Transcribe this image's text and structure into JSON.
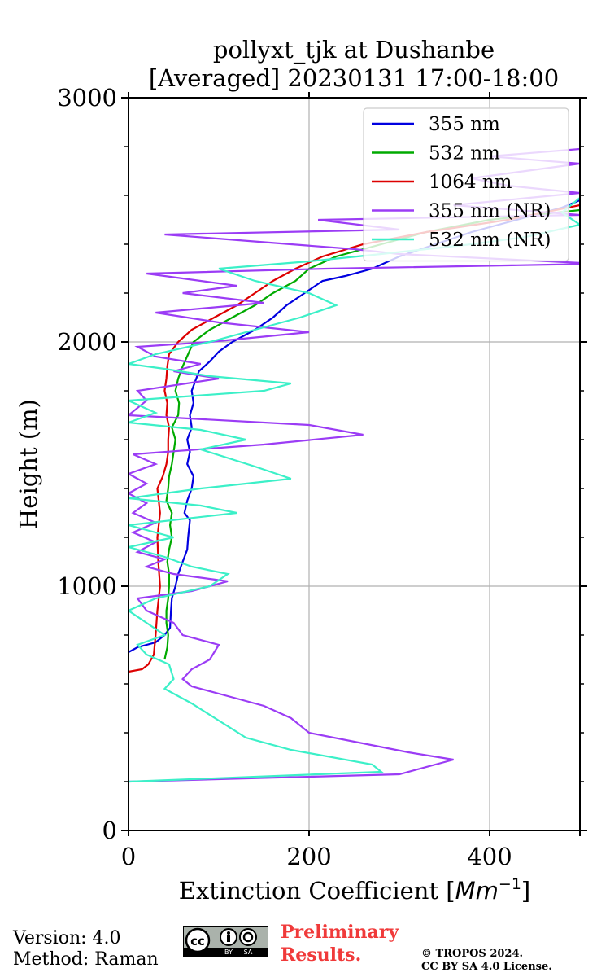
{
  "chart_data": {
    "type": "line",
    "title_line1": "pollyxt_tjk at Dushanbe",
    "title_line2": "[Averaged] 20230131 17:00-18:00",
    "xlabel": "Extinction Coefficient [",
    "xlabel_unit": "Mm",
    "xlabel_exp": "−1",
    "xlabel_close": "]",
    "ylabel": "Height (m)",
    "xlim": [
      0,
      500
    ],
    "ylim": [
      0,
      3000
    ],
    "x_ticks": [
      0,
      200,
      400
    ],
    "x_tick_labels": [
      "0",
      "200",
      "400"
    ],
    "y_ticks": [
      0,
      1000,
      2000,
      3000
    ],
    "y_tick_labels": [
      "0",
      "1000",
      "2000",
      "3000"
    ],
    "grid": true,
    "legend_position": "top-right",
    "series": [
      {
        "name": "355 nm",
        "color": "#0000e0",
        "points": [
          [
            0,
            730
          ],
          [
            10,
            750
          ],
          [
            30,
            770
          ],
          [
            40,
            800
          ],
          [
            46,
            830
          ],
          [
            47,
            900
          ],
          [
            48,
            950
          ],
          [
            52,
            1000
          ],
          [
            55,
            1050
          ],
          [
            60,
            1100
          ],
          [
            65,
            1150
          ],
          [
            66,
            1200
          ],
          [
            68,
            1270
          ],
          [
            62,
            1300
          ],
          [
            65,
            1350
          ],
          [
            70,
            1400
          ],
          [
            72,
            1450
          ],
          [
            65,
            1500
          ],
          [
            68,
            1550
          ],
          [
            65,
            1600
          ],
          [
            70,
            1650
          ],
          [
            68,
            1700
          ],
          [
            72,
            1750
          ],
          [
            70,
            1800
          ],
          [
            75,
            1850
          ],
          [
            78,
            1880
          ],
          [
            90,
            1920
          ],
          [
            100,
            1960
          ],
          [
            115,
            2000
          ],
          [
            140,
            2050
          ],
          [
            160,
            2100
          ],
          [
            175,
            2150
          ],
          [
            195,
            2200
          ],
          [
            215,
            2250
          ],
          [
            240,
            2270
          ],
          [
            270,
            2300
          ],
          [
            300,
            2350
          ],
          [
            340,
            2400
          ],
          [
            380,
            2450
          ],
          [
            430,
            2500
          ],
          [
            480,
            2550
          ],
          [
            500,
            2580
          ]
        ]
      },
      {
        "name": "532 nm",
        "color": "#00aa00",
        "points": [
          [
            40,
            700
          ],
          [
            43,
            750
          ],
          [
            44,
            800
          ],
          [
            42,
            850
          ],
          [
            42,
            900
          ],
          [
            44,
            950
          ],
          [
            45,
            1000
          ],
          [
            45,
            1050
          ],
          [
            43,
            1100
          ],
          [
            45,
            1150
          ],
          [
            48,
            1200
          ],
          [
            46,
            1250
          ],
          [
            48,
            1300
          ],
          [
            42,
            1350
          ],
          [
            44,
            1400
          ],
          [
            45,
            1450
          ],
          [
            48,
            1500
          ],
          [
            50,
            1550
          ],
          [
            52,
            1600
          ],
          [
            48,
            1650
          ],
          [
            55,
            1700
          ],
          [
            56,
            1750
          ],
          [
            52,
            1800
          ],
          [
            55,
            1850
          ],
          [
            60,
            1900
          ],
          [
            66,
            1950
          ],
          [
            72,
            2000
          ],
          [
            90,
            2050
          ],
          [
            115,
            2100
          ],
          [
            140,
            2150
          ],
          [
            160,
            2200
          ],
          [
            185,
            2250
          ],
          [
            200,
            2300
          ],
          [
            230,
            2350
          ],
          [
            280,
            2400
          ],
          [
            330,
            2450
          ],
          [
            400,
            2500
          ],
          [
            500,
            2540
          ]
        ]
      },
      {
        "name": "1064 nm",
        "color": "#dd0000",
        "points": [
          [
            0,
            650
          ],
          [
            15,
            660
          ],
          [
            22,
            680
          ],
          [
            28,
            720
          ],
          [
            30,
            800
          ],
          [
            32,
            900
          ],
          [
            35,
            1000
          ],
          [
            33,
            1100
          ],
          [
            32,
            1200
          ],
          [
            35,
            1300
          ],
          [
            32,
            1400
          ],
          [
            38,
            1450
          ],
          [
            42,
            1500
          ],
          [
            44,
            1550
          ],
          [
            44,
            1600
          ],
          [
            45,
            1650
          ],
          [
            42,
            1700
          ],
          [
            43,
            1750
          ],
          [
            40,
            1800
          ],
          [
            42,
            1850
          ],
          [
            43,
            1900
          ],
          [
            45,
            1950
          ],
          [
            55,
            2000
          ],
          [
            70,
            2050
          ],
          [
            95,
            2100
          ],
          [
            120,
            2150
          ],
          [
            140,
            2200
          ],
          [
            160,
            2250
          ],
          [
            185,
            2300
          ],
          [
            215,
            2350
          ],
          [
            260,
            2400
          ],
          [
            330,
            2450
          ],
          [
            420,
            2500
          ],
          [
            500,
            2560
          ]
        ]
      },
      {
        "name": "355 nm (NR)",
        "color": "#9b3cf5",
        "points": [
          [
            0,
            200
          ],
          [
            300,
            230
          ],
          [
            360,
            290
          ],
          [
            310,
            320
          ],
          [
            200,
            400
          ],
          [
            180,
            460
          ],
          [
            150,
            510
          ],
          [
            100,
            560
          ],
          [
            70,
            590
          ],
          [
            60,
            620
          ],
          [
            70,
            660
          ],
          [
            90,
            700
          ],
          [
            100,
            760
          ],
          [
            60,
            800
          ],
          [
            50,
            850
          ],
          [
            20,
            900
          ],
          [
            10,
            950
          ],
          [
            70,
            980
          ],
          [
            110,
            1020
          ],
          [
            50,
            1050
          ],
          [
            20,
            1080
          ],
          [
            40,
            1110
          ],
          [
            10,
            1140
          ],
          [
            30,
            1180
          ],
          [
            5,
            1220
          ],
          [
            30,
            1260
          ],
          [
            5,
            1300
          ],
          [
            20,
            1340
          ],
          [
            0,
            1380
          ],
          [
            20,
            1420
          ],
          [
            0,
            1460
          ],
          [
            30,
            1500
          ],
          [
            5,
            1540
          ],
          [
            150,
            1580
          ],
          [
            260,
            1620
          ],
          [
            200,
            1660
          ],
          [
            0,
            1700
          ],
          [
            20,
            1760
          ],
          [
            10,
            1800
          ],
          [
            100,
            1850
          ],
          [
            50,
            1880
          ],
          [
            80,
            1910
          ],
          [
            30,
            1940
          ],
          [
            10,
            1980
          ],
          [
            90,
            2000
          ],
          [
            200,
            2040
          ],
          [
            100,
            2080
          ],
          [
            30,
            2120
          ],
          [
            150,
            2160
          ],
          [
            60,
            2200
          ],
          [
            120,
            2230
          ],
          [
            20,
            2280
          ],
          [
            220,
            2300
          ],
          [
            520,
            2320
          ],
          [
            300,
            2360
          ],
          [
            250,
            2380
          ],
          [
            40,
            2440
          ],
          [
            300,
            2460
          ],
          [
            210,
            2500
          ],
          [
            500,
            2520
          ],
          [
            360,
            2560
          ],
          [
            500,
            2610
          ],
          [
            420,
            2640
          ],
          [
            380,
            2670
          ],
          [
            440,
            2700
          ],
          [
            500,
            2730
          ],
          [
            400,
            2760
          ],
          [
            500,
            2790
          ]
        ]
      },
      {
        "name": "532 nm (NR)",
        "color": "#3cf0c8",
        "points": [
          [
            0,
            200
          ],
          [
            280,
            240
          ],
          [
            270,
            270
          ],
          [
            180,
            330
          ],
          [
            130,
            380
          ],
          [
            100,
            450
          ],
          [
            70,
            520
          ],
          [
            40,
            580
          ],
          [
            50,
            620
          ],
          [
            45,
            680
          ],
          [
            20,
            720
          ],
          [
            10,
            760
          ],
          [
            40,
            800
          ],
          [
            20,
            850
          ],
          [
            0,
            900
          ],
          [
            30,
            950
          ],
          [
            90,
            1000
          ],
          [
            110,
            1050
          ],
          [
            70,
            1080
          ],
          [
            40,
            1120
          ],
          [
            0,
            1160
          ],
          [
            50,
            1200
          ],
          [
            0,
            1250
          ],
          [
            120,
            1300
          ],
          [
            80,
            1330
          ],
          [
            0,
            1360
          ],
          [
            80,
            1400
          ],
          [
            180,
            1440
          ],
          [
            140,
            1490
          ],
          [
            80,
            1560
          ],
          [
            130,
            1600
          ],
          [
            80,
            1640
          ],
          [
            0,
            1670
          ],
          [
            30,
            1710
          ],
          [
            0,
            1760
          ],
          [
            150,
            1800
          ],
          [
            180,
            1830
          ],
          [
            90,
            1860
          ],
          [
            40,
            1890
          ],
          [
            0,
            1910
          ],
          [
            30,
            1950
          ],
          [
            90,
            2000
          ],
          [
            140,
            2050
          ],
          [
            190,
            2100
          ],
          [
            230,
            2150
          ],
          [
            200,
            2200
          ],
          [
            140,
            2250
          ],
          [
            100,
            2300
          ],
          [
            200,
            2330
          ],
          [
            280,
            2360
          ],
          [
            380,
            2400
          ],
          [
            440,
            2430
          ],
          [
            500,
            2480
          ],
          [
            480,
            2530
          ],
          [
            500,
            2590
          ]
        ]
      }
    ]
  },
  "footer": {
    "version": "Version: 4.0",
    "method": "Method: Raman",
    "preliminary_line1": "Preliminary",
    "preliminary_line2": "Results.",
    "copyright_line1": "© TROPOS 2024.",
    "copyright_line2": "CC BY SA 4.0 License.",
    "cc_badge": {
      "cc": "cc",
      "by": "BY",
      "sa": "SA"
    }
  }
}
